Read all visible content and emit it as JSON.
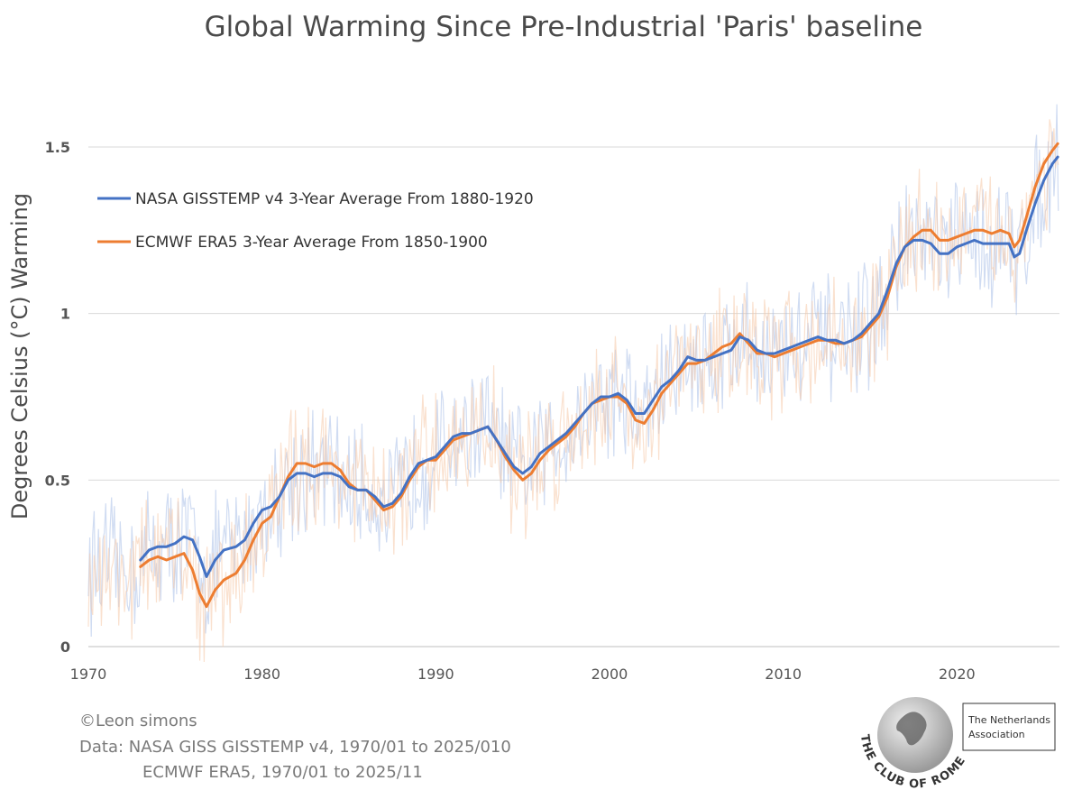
{
  "chart_data": {
    "type": "line",
    "title": "Global Warming Since Pre-Industrial 'Paris' baseline",
    "ylabel": "Degrees Celsius (°C) Warming",
    "xlabel": "",
    "xlim": [
      1970,
      2025.9
    ],
    "ylim": [
      0,
      1.5
    ],
    "y_ticks": [
      0,
      0.5,
      1,
      1.5
    ],
    "y_tick_labels": [
      "0",
      "0.5",
      "1",
      "1.5"
    ],
    "x_ticks": [
      1970,
      1980,
      1990,
      2000,
      2010,
      2020
    ],
    "x_tick_labels": [
      "1970",
      "1980",
      "1990",
      "2000",
      "2010",
      "2020"
    ],
    "grid": true,
    "legend_position": "top-left",
    "series": [
      {
        "name": "NASA GISSTEMP v4 3-Year Average From 1880-1920",
        "color": "#4472c4",
        "x": [
          1973.0,
          1973.5,
          1974.0,
          1974.5,
          1975.0,
          1975.5,
          1976.0,
          1976.4,
          1976.8,
          1977.3,
          1977.8,
          1978.5,
          1979.0,
          1979.5,
          1980.0,
          1980.5,
          1981.0,
          1981.5,
          1982.0,
          1982.5,
          1983.0,
          1983.5,
          1984.0,
          1984.5,
          1985.0,
          1985.5,
          1986.0,
          1986.5,
          1987.0,
          1987.5,
          1988.0,
          1988.5,
          1989.0,
          1989.5,
          1990.0,
          1990.5,
          1991.0,
          1991.5,
          1992.0,
          1992.5,
          1993.0,
          1993.5,
          1994.0,
          1994.5,
          1995.0,
          1995.5,
          1996.0,
          1996.5,
          1997.0,
          1997.5,
          1998.0,
          1998.5,
          1999.0,
          1999.5,
          2000.0,
          2000.5,
          2001.0,
          2001.5,
          2002.0,
          2002.5,
          2003.0,
          2003.5,
          2004.0,
          2004.5,
          2005.0,
          2005.5,
          2006.0,
          2006.5,
          2007.0,
          2007.5,
          2008.0,
          2008.5,
          2009.0,
          2009.5,
          2010.0,
          2010.5,
          2011.0,
          2011.5,
          2012.0,
          2012.5,
          2013.0,
          2013.5,
          2014.0,
          2014.5,
          2015.0,
          2015.5,
          2016.0,
          2016.5,
          2017.0,
          2017.5,
          2018.0,
          2018.5,
          2019.0,
          2019.5,
          2020.0,
          2020.5,
          2021.0,
          2021.5,
          2022.0,
          2022.5,
          2023.0,
          2023.3,
          2023.6,
          2024.0,
          2024.5,
          2025.0,
          2025.5,
          2025.8
        ],
        "values": [
          0.26,
          0.29,
          0.3,
          0.3,
          0.31,
          0.33,
          0.32,
          0.27,
          0.21,
          0.26,
          0.29,
          0.3,
          0.32,
          0.37,
          0.41,
          0.42,
          0.45,
          0.5,
          0.52,
          0.52,
          0.51,
          0.52,
          0.52,
          0.51,
          0.48,
          0.47,
          0.47,
          0.45,
          0.42,
          0.43,
          0.46,
          0.51,
          0.55,
          0.56,
          0.57,
          0.6,
          0.63,
          0.64,
          0.64,
          0.65,
          0.66,
          0.62,
          0.58,
          0.54,
          0.52,
          0.54,
          0.58,
          0.6,
          0.62,
          0.64,
          0.67,
          0.7,
          0.73,
          0.75,
          0.75,
          0.76,
          0.74,
          0.7,
          0.7,
          0.74,
          0.78,
          0.8,
          0.83,
          0.87,
          0.86,
          0.86,
          0.87,
          0.88,
          0.89,
          0.93,
          0.92,
          0.89,
          0.88,
          0.88,
          0.89,
          0.9,
          0.91,
          0.92,
          0.93,
          0.92,
          0.92,
          0.91,
          0.92,
          0.94,
          0.97,
          1.0,
          1.07,
          1.15,
          1.2,
          1.22,
          1.22,
          1.21,
          1.18,
          1.18,
          1.2,
          1.21,
          1.22,
          1.21,
          1.21,
          1.21,
          1.21,
          1.17,
          1.18,
          1.25,
          1.33,
          1.4,
          1.45,
          1.47
        ]
      },
      {
        "name": "ECMWF ERA5 3-Year Average From 1850-1900",
        "color": "#ed7d31",
        "x": [
          1973.0,
          1973.5,
          1974.0,
          1974.5,
          1975.0,
          1975.5,
          1976.0,
          1976.4,
          1976.8,
          1977.3,
          1977.8,
          1978.5,
          1979.0,
          1979.5,
          1980.0,
          1980.5,
          1981.0,
          1981.5,
          1982.0,
          1982.5,
          1983.0,
          1983.5,
          1984.0,
          1984.5,
          1985.0,
          1985.5,
          1986.0,
          1986.5,
          1987.0,
          1987.5,
          1988.0,
          1988.5,
          1989.0,
          1989.5,
          1990.0,
          1990.5,
          1991.0,
          1991.5,
          1992.0,
          1992.5,
          1993.0,
          1993.5,
          1994.0,
          1994.5,
          1995.0,
          1995.5,
          1996.0,
          1996.5,
          1997.0,
          1997.5,
          1998.0,
          1998.5,
          1999.0,
          1999.5,
          2000.0,
          2000.5,
          2001.0,
          2001.5,
          2002.0,
          2002.5,
          2003.0,
          2003.5,
          2004.0,
          2004.5,
          2005.0,
          2005.5,
          2006.0,
          2006.5,
          2007.0,
          2007.5,
          2008.0,
          2008.5,
          2009.0,
          2009.5,
          2010.0,
          2010.5,
          2011.0,
          2011.5,
          2012.0,
          2012.5,
          2013.0,
          2013.5,
          2014.0,
          2014.5,
          2015.0,
          2015.5,
          2016.0,
          2016.5,
          2017.0,
          2017.5,
          2018.0,
          2018.5,
          2019.0,
          2019.5,
          2020.0,
          2020.5,
          2021.0,
          2021.5,
          2022.0,
          2022.5,
          2023.0,
          2023.3,
          2023.6,
          2024.0,
          2024.5,
          2025.0,
          2025.5,
          2025.8
        ],
        "values": [
          0.24,
          0.26,
          0.27,
          0.26,
          0.27,
          0.28,
          0.23,
          0.16,
          0.12,
          0.17,
          0.2,
          0.22,
          0.26,
          0.32,
          0.37,
          0.39,
          0.45,
          0.51,
          0.55,
          0.55,
          0.54,
          0.55,
          0.55,
          0.53,
          0.49,
          0.47,
          0.47,
          0.44,
          0.41,
          0.42,
          0.45,
          0.5,
          0.54,
          0.56,
          0.56,
          0.59,
          0.62,
          0.63,
          0.64,
          0.65,
          0.66,
          0.62,
          0.57,
          0.53,
          0.5,
          0.52,
          0.56,
          0.59,
          0.61,
          0.63,
          0.66,
          0.7,
          0.73,
          0.74,
          0.75,
          0.75,
          0.73,
          0.68,
          0.67,
          0.71,
          0.76,
          0.79,
          0.82,
          0.85,
          0.85,
          0.86,
          0.88,
          0.9,
          0.91,
          0.94,
          0.91,
          0.88,
          0.88,
          0.87,
          0.88,
          0.89,
          0.9,
          0.91,
          0.92,
          0.92,
          0.91,
          0.91,
          0.92,
          0.93,
          0.96,
          0.99,
          1.05,
          1.14,
          1.2,
          1.23,
          1.25,
          1.25,
          1.22,
          1.22,
          1.23,
          1.24,
          1.25,
          1.25,
          1.24,
          1.25,
          1.24,
          1.2,
          1.22,
          1.29,
          1.38,
          1.45,
          1.49,
          1.51
        ]
      }
    ]
  },
  "credit": {
    "author": "©Leon simons",
    "data_line1": "Data: NASA GISS GISSTEMP v4, 1970/01 to 2025/010",
    "data_line2": "ECMWF ERA5, 1970/01 to 2025/11"
  },
  "logo": {
    "arc_text": "THE CLUB OF ROME",
    "box_line1": "The Netherlands",
    "box_line2": "Association"
  }
}
